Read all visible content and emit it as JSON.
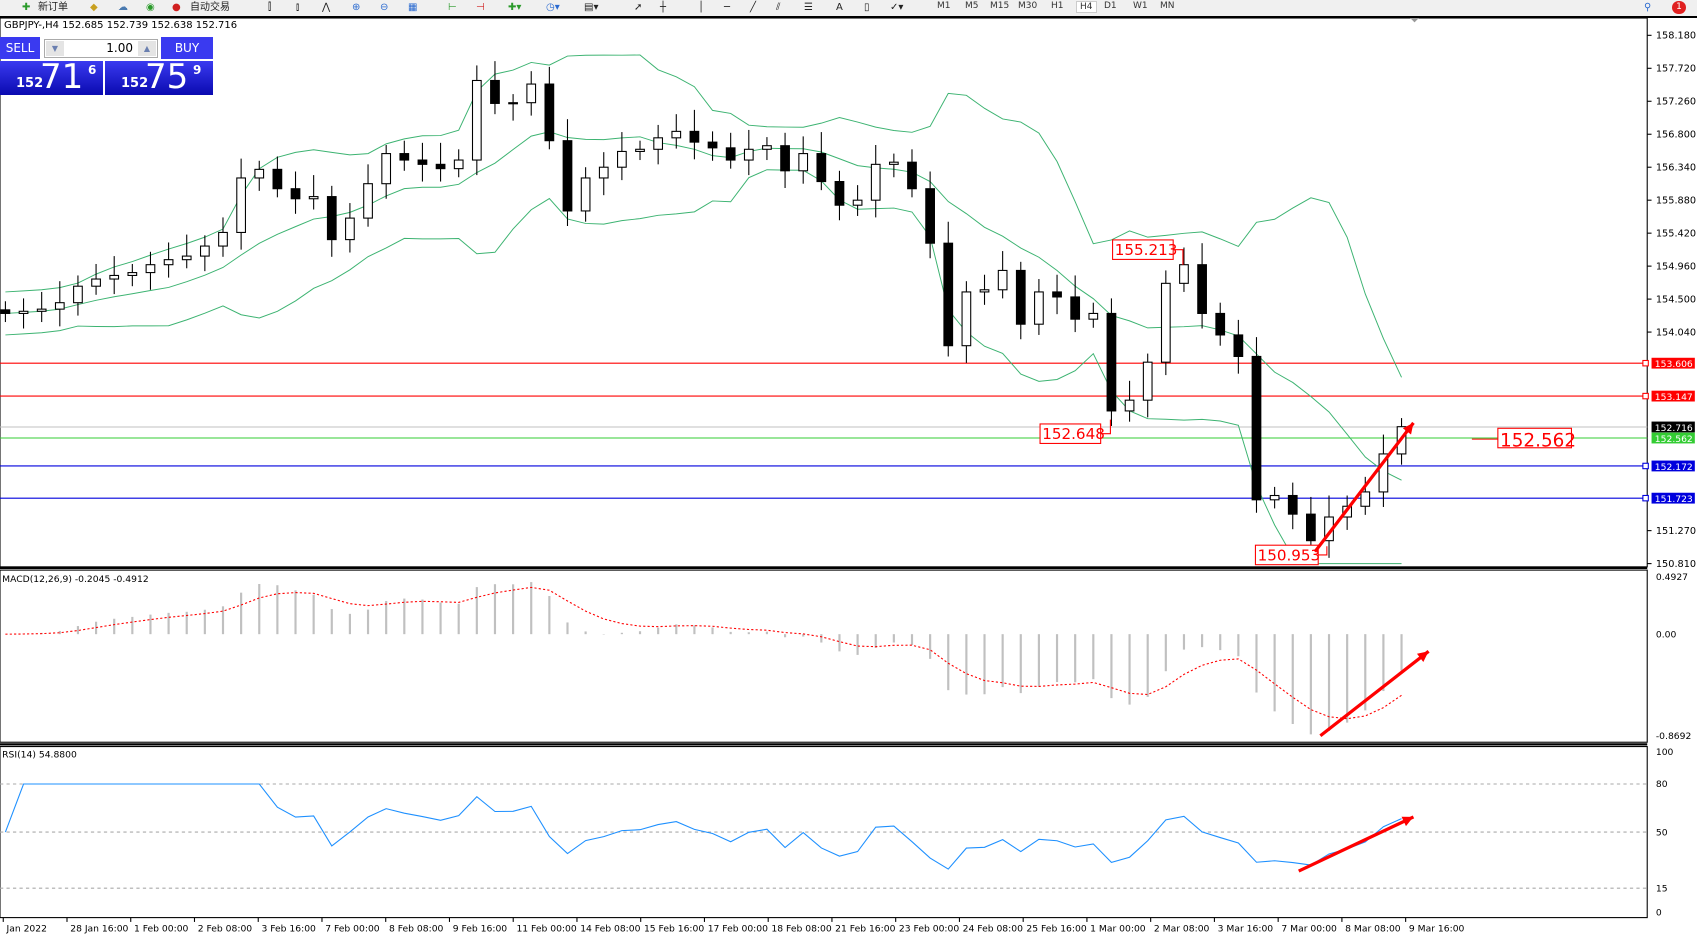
{
  "toolbar": {
    "new_order": "新订单",
    "auto_trading": "自动交易",
    "periods": [
      "M1",
      "M5",
      "M15",
      "M30",
      "H1",
      "H4",
      "D1",
      "W1",
      "MN"
    ],
    "active_period": "H4",
    "notification_count": "1"
  },
  "chart": {
    "header": "GBPJPY-,H4  152.685 152.739 152.638 152.716",
    "sell_label": "SELL",
    "buy_label": "BUY",
    "lot": "1.00",
    "bid": {
      "prefix": "152",
      "big": "71",
      "sup": "6"
    },
    "ask": {
      "prefix": "152",
      "big": "75",
      "sup": "9"
    }
  },
  "colors": {
    "up_candle": "#ffffff",
    "down_candle": "#000000",
    "bands": "#3cb371",
    "resistance": "#ff0000",
    "support": "#0000dd",
    "current": "#c0c0c0",
    "level_green": "#33cc33",
    "macd_signal": "#ff0000",
    "macd_hist": "#c0c0c0",
    "rsi": "#1e90ff",
    "annotation": "#ff0000"
  },
  "chart_data": [
    {
      "type": "candlestick",
      "symbol": "GBPJPY-",
      "timeframe": "H4",
      "indicators": [
        "Bollinger Bands"
      ],
      "ylim": [
        150.81,
        158.18
      ],
      "y_ticks": [
        "158.180",
        "157.720",
        "157.260",
        "156.800",
        "156.340",
        "155.880",
        "155.420",
        "154.960",
        "154.500",
        "154.040",
        "151.270",
        "150.810"
      ],
      "x_ticks": [
        "Jan 2022",
        "28 Jan 16:00",
        "1 Feb 00:00",
        "2 Feb 08:00",
        "3 Feb 16:00",
        "7 Feb 00:00",
        "8 Feb 08:00",
        "9 Feb 16:00",
        "11 Feb 00:00",
        "14 Feb 08:00",
        "15 Feb 16:00",
        "17 Feb 00:00",
        "18 Feb 08:00",
        "21 Feb 16:00",
        "23 Feb 00:00",
        "24 Feb 08:00",
        "25 Feb 16:00",
        "1 Mar 00:00",
        "2 Mar 08:00",
        "3 Mar 16:00",
        "7 Mar 00:00",
        "8 Mar 08:00",
        "9 Mar 16:00"
      ],
      "closes": [
        154.3,
        154.33,
        154.36,
        154.45,
        154.68,
        154.78,
        154.83,
        154.87,
        154.98,
        155.05,
        155.1,
        155.24,
        155.43,
        156.19,
        156.31,
        156.04,
        155.9,
        155.93,
        155.33,
        155.63,
        156.11,
        156.53,
        156.44,
        156.38,
        156.32,
        156.44,
        157.55,
        157.23,
        157.24,
        157.5,
        156.71,
        155.73,
        156.19,
        156.34,
        156.56,
        156.59,
        156.75,
        156.84,
        156.69,
        156.61,
        156.44,
        156.59,
        156.64,
        156.29,
        156.53,
        156.14,
        155.81,
        155.88,
        156.38,
        156.41,
        156.04,
        155.28,
        153.85,
        154.6,
        154.63,
        154.9,
        154.15,
        154.6,
        154.53,
        154.22,
        154.3,
        152.94,
        153.09,
        153.62,
        154.72,
        154.98,
        154.3,
        154.0,
        153.7,
        151.7,
        151.76,
        151.5,
        151.13,
        151.46,
        151.61,
        151.81,
        152.34,
        152.72
      ],
      "horizontal_lines": [
        {
          "value": "153.606",
          "kind": "resistance"
        },
        {
          "value": "153.147",
          "kind": "resistance"
        },
        {
          "value": "152.716",
          "kind": "current"
        },
        {
          "value": "152.562",
          "kind": "level_green"
        },
        {
          "value": "152.172",
          "kind": "support"
        },
        {
          "value": "151.723",
          "kind": "support"
        }
      ],
      "annotations": [
        "155.213",
        "152.648",
        "150.953",
        "152.562"
      ]
    },
    {
      "type": "bar+line",
      "label": "MACD(12,26,9) -0.2045 -0.4912",
      "ylim": [
        -0.8692,
        0.4927
      ],
      "y_ticks": [
        "0.4927",
        "0.00",
        "-0.8692"
      ]
    },
    {
      "type": "line",
      "label": "RSI(14) 54.8800",
      "ylim": [
        0,
        100
      ],
      "y_ticks": [
        "100",
        "80",
        "50",
        "15",
        "0"
      ],
      "levels": [
        80,
        50,
        15
      ]
    }
  ]
}
